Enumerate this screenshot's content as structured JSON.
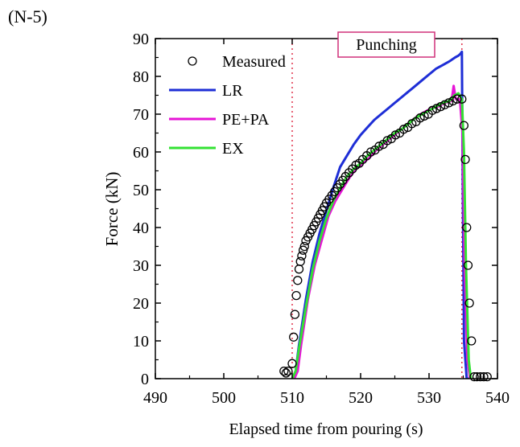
{
  "chart_data": {
    "type": "line",
    "panel_label": "(N-5)",
    "annotation": "Punching",
    "xlabel": "Elapsed time from pouring (s)",
    "ylabel": "Force (kN)",
    "xlim": [
      490,
      540
    ],
    "ylim": [
      0,
      90
    ],
    "xticks": [
      490,
      500,
      510,
      520,
      530,
      540
    ],
    "yticks": [
      0,
      10,
      20,
      30,
      40,
      50,
      60,
      70,
      80,
      90
    ],
    "grid": false,
    "legend_position": "top-left",
    "vertical_markers": [
      {
        "x": 510.0,
        "color": "#e0304a",
        "style": "dotted"
      },
      {
        "x": 534.8,
        "color": "#e0304a",
        "style": "dotted"
      }
    ],
    "series": [
      {
        "name": "Measured",
        "marker": "circle",
        "color": "#000000",
        "x": [
          508.8,
          509.1,
          509.4,
          510.0,
          510.2,
          510.4,
          510.6,
          510.8,
          511.0,
          511.2,
          511.4,
          511.6,
          511.8,
          512.0,
          512.3,
          512.6,
          512.9,
          513.2,
          513.5,
          513.8,
          514.1,
          514.4,
          514.7,
          515.0,
          515.4,
          515.8,
          516.2,
          516.6,
          517.0,
          517.4,
          517.8,
          518.3,
          518.8,
          519.3,
          519.8,
          520.3,
          520.9,
          521.5,
          522.1,
          522.7,
          523.3,
          523.9,
          524.5,
          525.1,
          525.7,
          526.3,
          526.9,
          527.5,
          528.1,
          528.7,
          529.3,
          529.9,
          530.5,
          531.1,
          531.7,
          532.3,
          532.9,
          533.5,
          534.1,
          534.8,
          535.1,
          535.3,
          535.5,
          535.7,
          535.9,
          536.2,
          536.6,
          537.0,
          537.5,
          538.0,
          538.5
        ],
        "y": [
          2,
          1.5,
          2,
          4,
          11,
          17,
          22,
          26,
          29,
          31,
          32.5,
          34,
          35,
          36.5,
          37.5,
          38.5,
          39.5,
          40.5,
          41.5,
          42.5,
          43.5,
          44.5,
          45.5,
          46.5,
          47.5,
          48.5,
          49.5,
          50.5,
          51.5,
          52.5,
          53.5,
          54.5,
          55.5,
          56.5,
          57,
          58,
          59,
          60,
          60.5,
          61.5,
          62,
          63,
          63.5,
          64.5,
          65,
          66,
          66.5,
          67.5,
          68,
          69,
          69.5,
          70,
          71,
          71.5,
          72,
          72.5,
          73,
          73.5,
          74,
          74,
          67,
          58,
          40,
          30,
          20,
          10,
          0.5,
          0.5,
          0.5,
          0.5,
          0.5
        ]
      },
      {
        "name": "LR",
        "color": "#1e2ed6",
        "x": [
          510.0,
          510.5,
          511.0,
          512.0,
          513.0,
          514.0,
          515.0,
          516.0,
          517.0,
          518.0,
          519.0,
          520.0,
          521.0,
          522.0,
          523.0,
          524.0,
          525.0,
          526.0,
          527.0,
          528.0,
          529.0,
          530.0,
          531.0,
          532.0,
          533.0,
          533.8,
          534.3,
          534.6,
          534.8,
          534.9,
          535.1,
          535.5,
          536.0
        ],
        "y": [
          0,
          2,
          9,
          21,
          31,
          38.5,
          44.5,
          50.5,
          56,
          59,
          62,
          64.5,
          66.5,
          68.5,
          70,
          71.5,
          73,
          74.5,
          76,
          77.5,
          79,
          80.5,
          82,
          83,
          84,
          85,
          85.5,
          86,
          86.5,
          60,
          10,
          0,
          0
        ]
      },
      {
        "name": "PE+PA",
        "color": "#e614d6",
        "x": [
          510.3,
          510.8,
          511.3,
          512.3,
          513.3,
          514.3,
          515.3,
          516.3,
          517.3,
          518.3,
          519.3,
          520.3,
          521.3,
          522.3,
          523.3,
          524.3,
          525.3,
          526.3,
          527.3,
          528.3,
          529.3,
          530.3,
          531.3,
          532.3,
          533.3,
          533.6,
          533.9,
          534.5,
          534.9,
          535.2,
          535.6,
          536.0
        ],
        "y": [
          0,
          2,
          9,
          21,
          30,
          36.5,
          43,
          47,
          50,
          53,
          55.5,
          57,
          58.5,
          60.5,
          62,
          63.5,
          65,
          66.5,
          68,
          69.5,
          70.5,
          71.5,
          72,
          73,
          73.5,
          77.5,
          74,
          74,
          65,
          30,
          5,
          0
        ]
      },
      {
        "name": "EX",
        "color": "#33e233",
        "x": [
          510.0,
          510.5,
          511.0,
          512.0,
          513.0,
          514.0,
          515.0,
          516.0,
          517.0,
          518.0,
          519.0,
          520.0,
          521.0,
          522.0,
          523.0,
          524.0,
          525.0,
          526.0,
          527.0,
          528.0,
          529.0,
          530.0,
          531.0,
          532.0,
          533.0,
          533.7,
          534.3,
          534.8,
          535.1,
          535.4,
          535.8,
          536.1
        ],
        "y": [
          0,
          2,
          8,
          19,
          29,
          36.5,
          42.5,
          47,
          50.5,
          53.5,
          55.5,
          57,
          59,
          60.5,
          62,
          63.5,
          65,
          66,
          67.5,
          69,
          70,
          71,
          72,
          73,
          73.5,
          75,
          75.5,
          74,
          60,
          30,
          5,
          0
        ]
      }
    ]
  }
}
